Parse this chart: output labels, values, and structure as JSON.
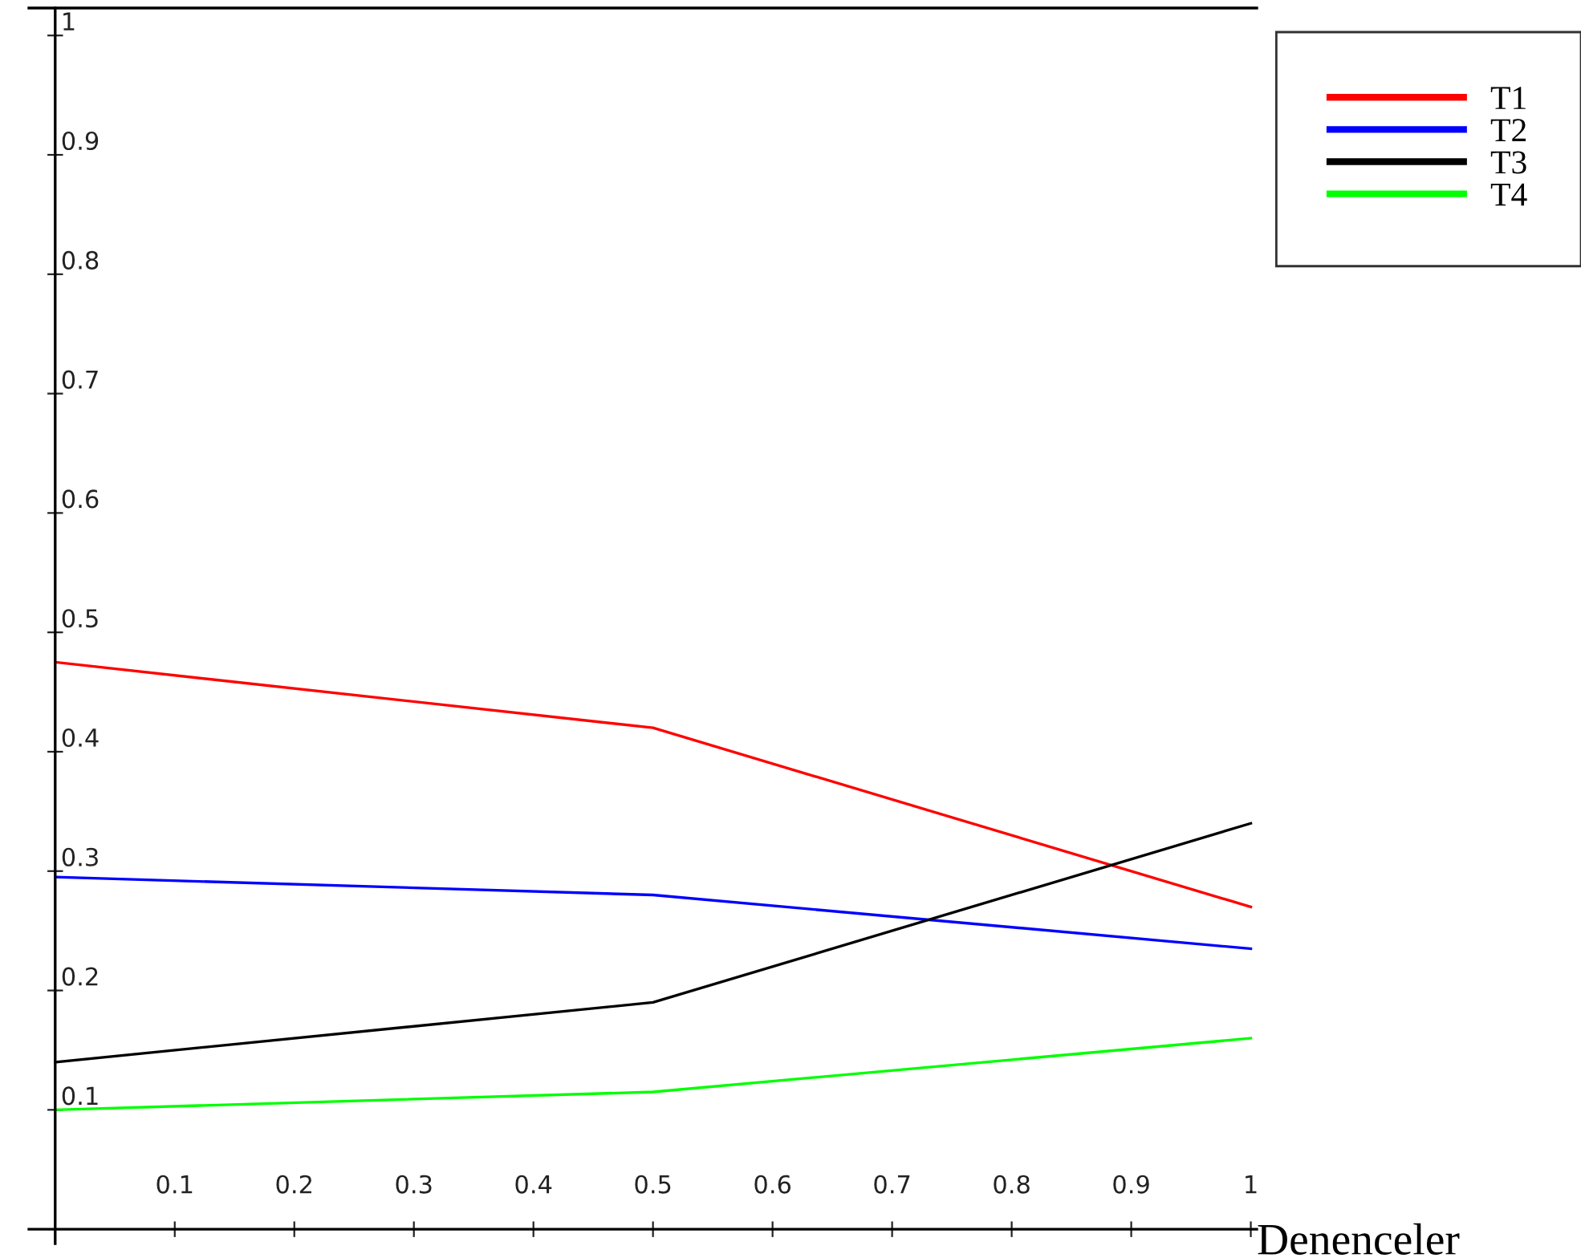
{
  "chart_data": {
    "type": "line",
    "xlabel": "Denenceler",
    "x": [
      0,
      0.5,
      1
    ],
    "series": [
      {
        "name": "T1",
        "color": "#ff0000",
        "values": [
          0.475,
          0.42,
          0.27
        ]
      },
      {
        "name": "T2",
        "color": "#0000ff",
        "values": [
          0.295,
          0.28,
          0.235
        ]
      },
      {
        "name": "T3",
        "color": "#000000",
        "values": [
          0.14,
          0.19,
          0.34
        ]
      },
      {
        "name": "T4",
        "color": "#00ff00",
        "values": [
          0.1,
          0.115,
          0.16
        ]
      }
    ],
    "xlim": [
      -0.022,
      1.005
    ],
    "ylim": [
      -0.012,
      1.023
    ],
    "xticks": [
      0.1,
      0.2,
      0.3,
      0.4,
      0.5,
      0.6,
      0.7,
      0.8,
      0.9,
      1
    ],
    "yticks": [
      0.1,
      0.2,
      0.3,
      0.4,
      0.5,
      0.6,
      0.7,
      0.8,
      0.9,
      1
    ],
    "grid": false,
    "legend": "top right",
    "marker": "none",
    "line_style": "solid"
  }
}
